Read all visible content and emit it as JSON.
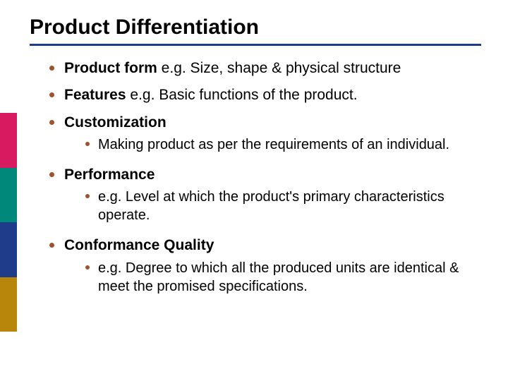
{
  "colors": {
    "rule": "#1f3c8a",
    "dot": "#a0522d",
    "sidebar": [
      "#d81b60",
      "#00897b",
      "#1f3c8a",
      "#b8860b"
    ]
  },
  "title": "Product Differentiation",
  "items": [
    {
      "lead": "Product form",
      "trail": " e.g. Size, shape & physical structure",
      "subs": []
    },
    {
      "lead": "Features",
      "trail": " e.g. Basic functions of the product.",
      "subs": []
    },
    {
      "lead": "Customization",
      "trail": "",
      "subs": [
        "Making product as per the requirements of an individual."
      ]
    },
    {
      "lead": "Performance",
      "trail": "",
      "subs": [
        "e.g. Level at which the product's primary characteristics operate."
      ]
    },
    {
      "lead": "Conformance Quality",
      "trail": "",
      "subs": [
        "e.g. Degree to which all the produced units are identical & meet the promised specifications."
      ]
    }
  ]
}
